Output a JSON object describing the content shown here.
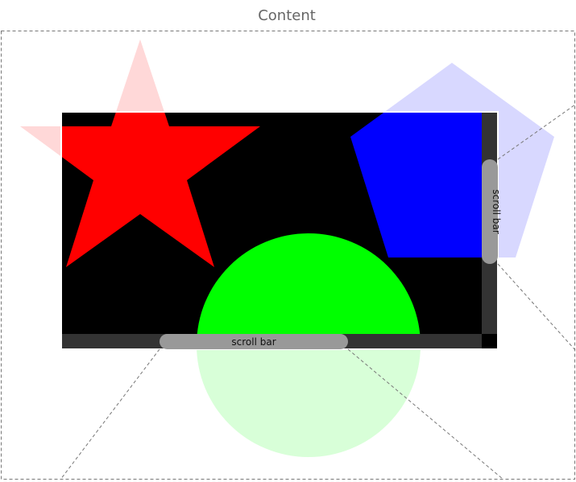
{
  "title": "Content",
  "scrollbars": {
    "horizontal_label": "scroll bar",
    "vertical_label": "scroll bar",
    "horizontal_scroll_fraction": 0.24,
    "vertical_scroll_fraction": 0.25
  },
  "colors": {
    "viewport_background": "#000000",
    "viewport_border": "#ffffff",
    "star": "#ff0000",
    "star_outside": "#ffd8d8",
    "pentagon": "#0000ff",
    "pentagon_outside": "#d8d8ff",
    "circle": "#00ff00",
    "circle_outside": "#d8ffd8",
    "scroll_track": "#333333",
    "scroll_thumb": "#999999",
    "guide_line": "#777777",
    "title_text": "#666666",
    "label_text": "#111111"
  }
}
